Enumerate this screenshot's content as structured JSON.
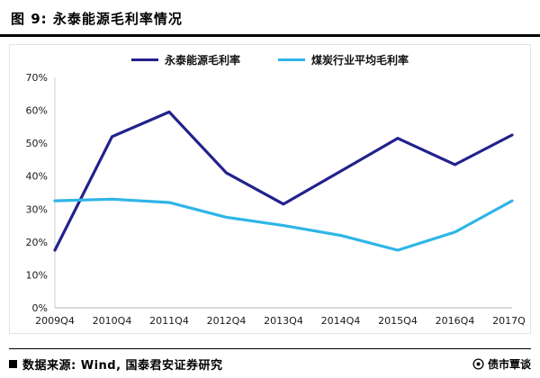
{
  "header": {
    "title": "图 9: 永泰能源毛利率情况"
  },
  "footer": {
    "source": "数据来源: Wind, 国泰君安证券研究",
    "brand": "债市覃谈"
  },
  "chart_data": {
    "type": "line",
    "title": "永泰能源毛利率情况",
    "categories": [
      "2009Q4",
      "2010Q4",
      "2011Q4",
      "2012Q4",
      "2013Q4",
      "2014Q4",
      "2015Q4",
      "2016Q4",
      "2017Q4"
    ],
    "series": [
      {
        "name": "永泰能源毛利率",
        "color": "#22218C",
        "values": [
          17.5,
          52,
          59.5,
          41,
          31.5,
          41.5,
          51.5,
          43.5,
          52.5
        ]
      },
      {
        "name": "煤炭行业平均毛利率",
        "color": "#2EB5E8",
        "values": [
          32.5,
          33,
          32,
          27.5,
          25,
          22,
          17.5,
          23,
          32.5
        ]
      }
    ],
    "xlabel": "",
    "ylabel": "",
    "ylim": [
      0,
      70
    ],
    "ytick_step": 10,
    "ytick_labels": [
      "0%",
      "10%",
      "20%",
      "30%",
      "40%",
      "50%",
      "60%",
      "70%"
    ],
    "legend_position": "top",
    "grid": false
  }
}
